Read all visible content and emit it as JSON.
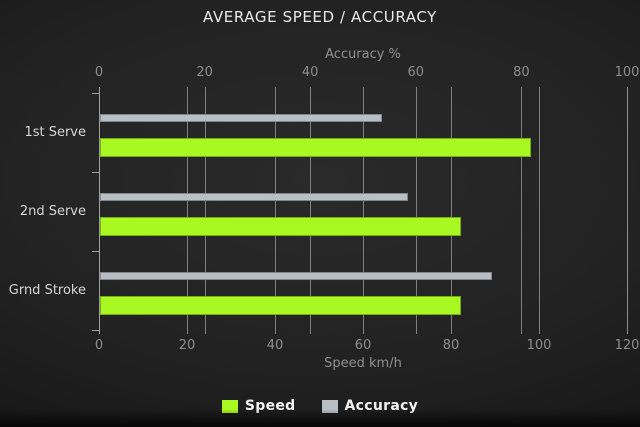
{
  "title": "AVERAGE SPEED / ACCURACY",
  "chart_data": {
    "type": "bar",
    "orientation": "horizontal",
    "title": "AVERAGE SPEED / ACCURACY",
    "categories": [
      "1st Serve",
      "2nd Serve",
      "Grnd Stroke"
    ],
    "series": [
      {
        "name": "Speed",
        "color": "#aaf822",
        "values": [
          98,
          82,
          82
        ]
      },
      {
        "name": "Accuracy",
        "color": "#b9c0c5",
        "values": [
          64,
          70,
          89
        ]
      }
    ],
    "axes": {
      "top": {
        "label": "Accuracy %",
        "ticks": [
          0,
          20,
          40,
          60,
          80,
          100
        ],
        "range": [
          0,
          100
        ]
      },
      "bottom": {
        "label": "Speed km/h",
        "ticks": [
          0,
          20,
          40,
          60,
          80,
          100,
          120
        ],
        "range": [
          0,
          120
        ]
      }
    },
    "legend": {
      "position": "bottom",
      "entries": [
        "Speed",
        "Accuracy"
      ]
    },
    "grid": "vertical gridlines drawn for both top-axis and bottom-axis ticks",
    "note": "both series' bar lengths are plotted against the bottom (Speed) axis scale"
  },
  "colors": {
    "background_center": "#2a2a2a",
    "background_edge": "#0c0c0c",
    "gridline": "#8f8f8f",
    "title_text": "#e9e9e9",
    "axis_text": "#8d8d8d",
    "category_text": "#d6d6d6",
    "legend_text": "#f2f2f2",
    "speed_bar": "#aaf822",
    "accuracy_bar": "#b9c0c5"
  }
}
